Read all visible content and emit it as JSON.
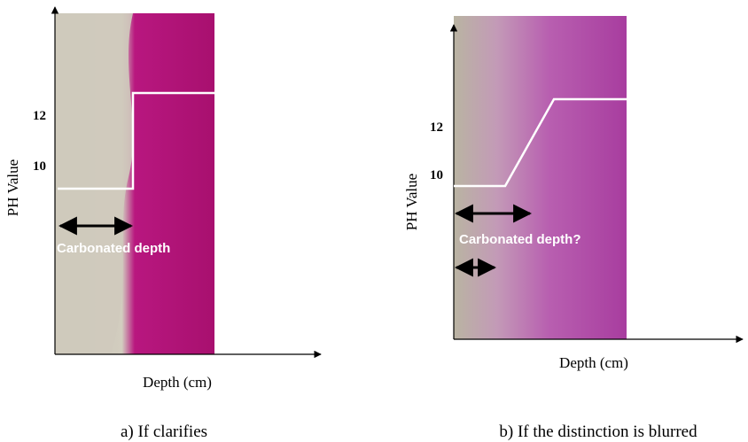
{
  "panels": [
    {
      "y_axis_label": "PH Value",
      "x_axis_label": "Depth (cm)",
      "yticks": [
        12,
        10
      ],
      "annotation": "Carbonated depth",
      "caption": "a) If clarifies"
    },
    {
      "y_axis_label": "PH Value",
      "x_axis_label": "Depth (cm)",
      "yticks": [
        12,
        10
      ],
      "annotation": "Carbonated depth?",
      "caption": "b) If the distinction is blurred"
    }
  ]
}
